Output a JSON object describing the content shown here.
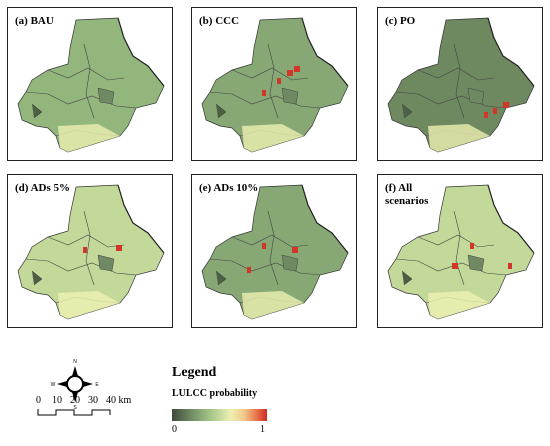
{
  "panels": [
    {
      "label": "(a) BAU",
      "scheme": "green"
    },
    {
      "label": "(b) CCC",
      "scheme": "mixed"
    },
    {
      "label": "(c) PO",
      "scheme": "dark"
    },
    {
      "label": "(d) ADs 5%",
      "scheme": "light"
    },
    {
      "label": "(e) ADs 10%",
      "scheme": "mixed"
    },
    {
      "label": "(f) All\nscenarios",
      "scheme": "light"
    }
  ],
  "legend": {
    "title": "Legend",
    "subtitle": "LULCC probability",
    "min_label": "0",
    "max_label": "1",
    "colors": [
      "#3f4a3c",
      "#a9c98a",
      "#eef0b2",
      "#cf2a20"
    ]
  },
  "north_arrow": {
    "n": "N",
    "s": "S",
    "e": "E",
    "w": "W"
  },
  "scale_bar": {
    "labels": [
      "0",
      "10",
      "20",
      "30",
      "40 km"
    ]
  }
}
